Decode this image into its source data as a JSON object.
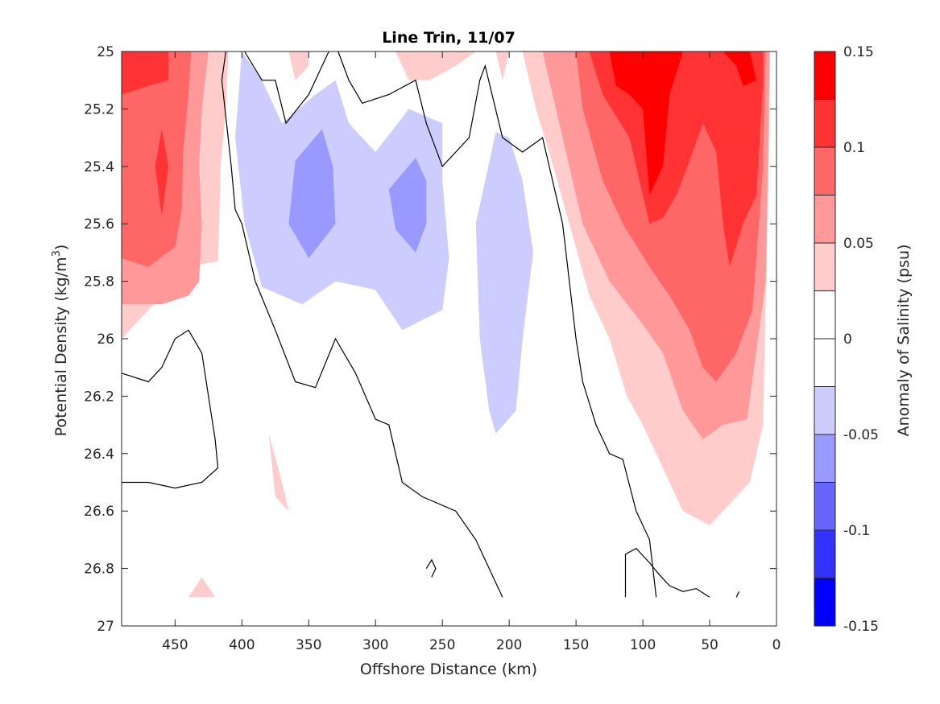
{
  "chart_data": {
    "type": "contour",
    "title": "Line Trin, 11/07",
    "xlabel": "Offshore Distance (km)",
    "ylabel": "Potential Density (kg/m³)",
    "ylabel_main": "Potential Density (kg/m",
    "ylabel_sup": "3",
    "ylabel_end": ")",
    "xlim": [
      490,
      0
    ],
    "ylim": [
      25,
      27
    ],
    "x_ticks": [
      450,
      400,
      350,
      300,
      250,
      200,
      150,
      100,
      50,
      0
    ],
    "x_tick_labels": [
      "450",
      "400",
      "350",
      "300",
      "250",
      "200",
      "150",
      "100",
      "50",
      "0"
    ],
    "y_ticks": [
      25,
      25.2,
      25.4,
      25.6,
      25.8,
      26,
      26.2,
      26.4,
      26.6,
      26.8,
      27
    ],
    "y_tick_labels": [
      "25",
      "25.2",
      "25.4",
      "25.6",
      "25.8",
      "26",
      "26.2",
      "26.4",
      "26.6",
      "26.8",
      "27"
    ],
    "colorbar": {
      "label": "Anomaly of Salinity (psu)",
      "range": [
        -0.15,
        0.15
      ],
      "colors": [
        "#0000ff",
        "#3333ff",
        "#6666ff",
        "#9999ff",
        "#ccccff",
        "#ffffff",
        "#ffffff",
        "#ffcccc",
        "#ff9999",
        "#ff6666",
        "#ff3333",
        "#ff0000"
      ],
      "tick_values": [
        0.15,
        0.1,
        0.05,
        0,
        -0.05,
        -0.1,
        -0.15
      ],
      "tick_labels": [
        "0.15",
        "0.1",
        "0.05",
        "0",
        "-0.05",
        "-0.1",
        "-0.15"
      ]
    },
    "regions": [
      {
        "level": 0.0375,
        "color": "#ffcccc",
        "points": [
          [
            490,
            25
          ],
          [
            410,
            25
          ],
          [
            412,
            25.2
          ],
          [
            416,
            25.4
          ],
          [
            417,
            25.6
          ],
          [
            418,
            25.73
          ],
          [
            440,
            25.75
          ],
          [
            460,
            25.85
          ],
          [
            480,
            25.95
          ],
          [
            490,
            26
          ]
        ]
      },
      {
        "level": 0.0625,
        "color": "#ff9999",
        "points": [
          [
            490,
            25
          ],
          [
            425,
            25
          ],
          [
            430,
            25.2
          ],
          [
            432,
            25.4
          ],
          [
            430,
            25.6
          ],
          [
            432,
            25.8
          ],
          [
            440,
            25.85
          ],
          [
            460,
            25.88
          ],
          [
            490,
            25.88
          ]
        ]
      },
      {
        "level": 0.0875,
        "color": "#ff6666",
        "points": [
          [
            490,
            25
          ],
          [
            438,
            25
          ],
          [
            440,
            25.15
          ],
          [
            444,
            25.35
          ],
          [
            445,
            25.55
          ],
          [
            450,
            25.68
          ],
          [
            470,
            25.75
          ],
          [
            490,
            25.72
          ]
        ]
      },
      {
        "level": 0.1125,
        "color": "#ff3333",
        "points": [
          [
            490,
            25
          ],
          [
            455,
            25
          ],
          [
            455,
            25.1
          ],
          [
            470,
            25.12
          ],
          [
            490,
            25.15
          ]
        ]
      },
      {
        "level": 0.1125,
        "color": "#ff3333",
        "points": [
          [
            460,
            25.27
          ],
          [
            455,
            25.4
          ],
          [
            460,
            25.57
          ],
          [
            465,
            25.4
          ]
        ]
      },
      {
        "level": -0.0375,
        "color": "#ccccff",
        "points": [
          [
            400,
            25
          ],
          [
            385,
            25.1
          ],
          [
            370,
            25.25
          ],
          [
            345,
            25.15
          ],
          [
            330,
            25.1
          ],
          [
            320,
            25.25
          ],
          [
            300,
            25.35
          ],
          [
            275,
            25.2
          ],
          [
            250,
            25.25
          ],
          [
            250,
            25.45
          ],
          [
            245,
            25.72
          ],
          [
            250,
            25.9
          ],
          [
            280,
            25.97
          ],
          [
            300,
            25.83
          ],
          [
            330,
            25.8
          ],
          [
            355,
            25.88
          ],
          [
            385,
            25.82
          ],
          [
            398,
            25.6
          ],
          [
            405,
            25.3
          ]
        ]
      },
      {
        "level": -0.0625,
        "color": "#9999ff",
        "points": [
          [
            340,
            25.27
          ],
          [
            360,
            25.38
          ],
          [
            365,
            25.6
          ],
          [
            350,
            25.72
          ],
          [
            330,
            25.6
          ],
          [
            332,
            25.4
          ]
        ]
      },
      {
        "level": -0.0625,
        "color": "#9999ff",
        "points": [
          [
            270,
            25.37
          ],
          [
            290,
            25.48
          ],
          [
            285,
            25.62
          ],
          [
            270,
            25.7
          ],
          [
            262,
            25.6
          ],
          [
            262,
            25.45
          ]
        ]
      },
      {
        "level": -0.0375,
        "color": "#ccccff",
        "points": [
          [
            260,
            25.58
          ],
          [
            255,
            25.6
          ],
          [
            258,
            25.72
          ]
        ]
      },
      {
        "level": -0.0375,
        "color": "#ccccff",
        "points": [
          [
            200,
            25.3
          ],
          [
            210,
            25.28
          ],
          [
            225,
            25.6
          ],
          [
            222,
            26
          ],
          [
            215,
            26.25
          ],
          [
            210,
            26.33
          ],
          [
            195,
            26.25
          ],
          [
            190,
            26
          ],
          [
            182,
            25.7
          ],
          [
            190,
            25.45
          ]
        ]
      },
      {
        "level": 0.0375,
        "color": "#ffcccc",
        "points": [
          [
            300,
            25
          ],
          [
            285,
            25
          ],
          [
            275,
            25.1
          ],
          [
            260,
            25.1
          ],
          [
            240,
            25.05
          ],
          [
            225,
            25
          ],
          [
            210,
            25
          ],
          [
            205,
            25.1
          ],
          [
            200,
            25
          ]
        ]
      },
      {
        "level": 0.0375,
        "color": "#ffcccc",
        "points": [
          [
            365,
            25
          ],
          [
            360,
            25.1
          ],
          [
            350,
            25.05
          ],
          [
            350,
            25
          ]
        ]
      },
      {
        "level": 0.0375,
        "color": "#ffcccc",
        "points": [
          [
            190,
            25
          ],
          [
            180,
            25.2
          ],
          [
            170,
            25.35
          ],
          [
            155,
            25.6
          ],
          [
            140,
            25.85
          ],
          [
            125,
            26
          ],
          [
            112,
            26.2
          ],
          [
            100,
            26.3
          ],
          [
            90,
            26.4
          ],
          [
            70,
            26.6
          ],
          [
            50,
            26.65
          ],
          [
            30,
            26.55
          ],
          [
            20,
            26.5
          ],
          [
            10,
            26.3
          ],
          [
            5,
            25.2
          ],
          [
            15,
            25
          ]
        ]
      },
      {
        "level": 0.0625,
        "color": "#ff9999",
        "points": [
          [
            175,
            25
          ],
          [
            165,
            25.2
          ],
          [
            145,
            25.6
          ],
          [
            125,
            25.8
          ],
          [
            100,
            25.95
          ],
          [
            85,
            26.05
          ],
          [
            70,
            26.25
          ],
          [
            55,
            26.35
          ],
          [
            40,
            26.3
          ],
          [
            22,
            26.28
          ],
          [
            8,
            25.8
          ],
          [
            5,
            25
          ],
          [
            200,
            25
          ]
        ]
      },
      {
        "level": 0.0875,
        "color": "#ff6666",
        "points": [
          [
            150,
            25
          ],
          [
            145,
            25.2
          ],
          [
            130,
            25.45
          ],
          [
            115,
            25.6
          ],
          [
            95,
            25.75
          ],
          [
            80,
            25.85
          ],
          [
            65,
            25.97
          ],
          [
            55,
            26.1
          ],
          [
            45,
            26.15
          ],
          [
            30,
            26.05
          ],
          [
            18,
            25.9
          ],
          [
            10,
            25.4
          ],
          [
            8,
            25
          ]
        ]
      },
      {
        "level": 0.1125,
        "color": "#ff3333",
        "points": [
          [
            140,
            25
          ],
          [
            130,
            25.15
          ],
          [
            110,
            25.3
          ],
          [
            100,
            25.5
          ],
          [
            95,
            25.6
          ],
          [
            85,
            25.58
          ],
          [
            75,
            25.5
          ],
          [
            65,
            25.38
          ],
          [
            55,
            25.25
          ],
          [
            45,
            25.35
          ],
          [
            40,
            25.6
          ],
          [
            35,
            25.75
          ],
          [
            25,
            25.6
          ],
          [
            15,
            25.5
          ],
          [
            10,
            25.1
          ],
          [
            10,
            25
          ]
        ]
      },
      {
        "level": 0.1375,
        "color": "#ff0000",
        "points": [
          [
            125,
            25
          ],
          [
            120,
            25.12
          ],
          [
            110,
            25.15
          ],
          [
            100,
            25.2
          ],
          [
            95,
            25.5
          ],
          [
            85,
            25.4
          ],
          [
            80,
            25.15
          ],
          [
            70,
            25
          ],
          [
            115,
            25
          ]
        ]
      },
      {
        "level": 0.1375,
        "color": "#ff0000",
        "points": [
          [
            40,
            25
          ],
          [
            30,
            25.05
          ],
          [
            25,
            25.12
          ],
          [
            15,
            25.1
          ],
          [
            20,
            25
          ]
        ]
      },
      {
        "level": 0.0375,
        "color": "#ffcccc",
        "points": [
          [
            380,
            26.33
          ],
          [
            370,
            26.5
          ],
          [
            365,
            26.6
          ],
          [
            375,
            26.55
          ]
        ]
      },
      {
        "level": 0.0375,
        "color": "#ffcccc",
        "points": [
          [
            430,
            26.83
          ],
          [
            420,
            26.9
          ],
          [
            440,
            26.9
          ]
        ]
      }
    ],
    "zero_lines": [
      {
        "points": [
          [
            412,
            25
          ],
          [
            415,
            25.1
          ],
          [
            408,
            25.4
          ],
          [
            405,
            25.55
          ],
          [
            400,
            25.6
          ],
          [
            390,
            25.8
          ],
          [
            375,
            25.97
          ],
          [
            360,
            26.15
          ],
          [
            345,
            26.17
          ],
          [
            330,
            26.0
          ],
          [
            315,
            26.12
          ],
          [
            300,
            26.28
          ],
          [
            290,
            26.3
          ],
          [
            280,
            26.5
          ],
          [
            265,
            26.55
          ],
          [
            240,
            26.6
          ],
          [
            225,
            26.7
          ],
          [
            210,
            26.85
          ],
          [
            205,
            26.9
          ]
        ]
      },
      {
        "points": [
          [
            398,
            25
          ],
          [
            385,
            25.1
          ],
          [
            375,
            25.1
          ],
          [
            367,
            25.25
          ],
          [
            362,
            25.22
          ],
          [
            350,
            25.15
          ],
          [
            340,
            25.05
          ],
          [
            335,
            25
          ]
        ]
      },
      {
        "points": [
          [
            328,
            25
          ],
          [
            320,
            25.1
          ],
          [
            310,
            25.18
          ],
          [
            290,
            25.15
          ],
          [
            270,
            25.1
          ],
          [
            262,
            25.25
          ],
          [
            250,
            25.4
          ],
          [
            240,
            25.35
          ],
          [
            230,
            25.3
          ],
          [
            222,
            25.1
          ],
          [
            218,
            25.05
          ],
          [
            205,
            25.3
          ],
          [
            190,
            25.35
          ],
          [
            175,
            25.3
          ],
          [
            160,
            25.6
          ],
          [
            155,
            25.8
          ],
          [
            150,
            26
          ],
          [
            145,
            26.15
          ],
          [
            135,
            26.3
          ],
          [
            125,
            26.4
          ],
          [
            115,
            26.42
          ],
          [
            105,
            26.6
          ],
          [
            95,
            26.7
          ],
          [
            90,
            26.9
          ]
        ]
      },
      {
        "points": [
          [
            490,
            26.12
          ],
          [
            470,
            26.15
          ],
          [
            460,
            26.1
          ],
          [
            450,
            26.0
          ],
          [
            440,
            25.97
          ],
          [
            430,
            26.05
          ],
          [
            425,
            26.2
          ],
          [
            420,
            26.35
          ],
          [
            418,
            26.45
          ],
          [
            430,
            26.5
          ],
          [
            450,
            26.52
          ],
          [
            470,
            26.5
          ],
          [
            490,
            26.5
          ]
        ]
      },
      {
        "points": [
          [
            262,
            26.8
          ],
          [
            258,
            26.77
          ],
          [
            255,
            26.8
          ],
          [
            258,
            26.83
          ]
        ]
      },
      {
        "points": [
          [
            113,
            26.9
          ],
          [
            113,
            26.75
          ],
          [
            105,
            26.73
          ],
          [
            95,
            26.78
          ],
          [
            88,
            26.82
          ],
          [
            80,
            26.86
          ],
          [
            70,
            26.88
          ],
          [
            60,
            26.87
          ],
          [
            50,
            26.9
          ]
        ]
      },
      {
        "points": [
          [
            30,
            26.9
          ],
          [
            28,
            26.88
          ]
        ]
      }
    ]
  }
}
